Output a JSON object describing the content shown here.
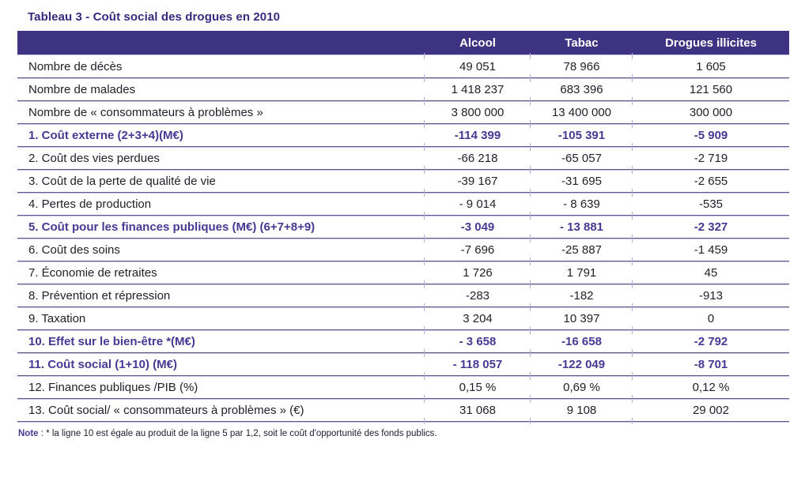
{
  "title": "Tableau 3 - Coût social des drogues en 2010",
  "table": {
    "columns": [
      "",
      "Alcool",
      "Tabac",
      "Drogues illicites"
    ],
    "rows": [
      {
        "label": "Nombre de décès",
        "values": [
          "49 051",
          "78 966",
          "1 605"
        ],
        "emphasis": false
      },
      {
        "label": "Nombre de malades",
        "values": [
          "1 418 237",
          "683 396",
          "121 560"
        ],
        "emphasis": false
      },
      {
        "label": "Nombre de « consommateurs à problèmes »",
        "values": [
          "3 800 000",
          "13 400 000",
          "300 000"
        ],
        "emphasis": false
      },
      {
        "label": "1. Coût externe (2+3+4)(M€)",
        "values": [
          "-114 399",
          "-105 391",
          "-5 909"
        ],
        "emphasis": true
      },
      {
        "label": "2. Coût des vies perdues",
        "values": [
          "-66 218",
          "-65 057",
          "-2 719"
        ],
        "emphasis": false
      },
      {
        "label": "3. Coût de la perte de qualité de vie",
        "values": [
          "-39 167",
          "-31 695",
          "-2 655"
        ],
        "emphasis": false
      },
      {
        "label": "4. Pertes de production",
        "values": [
          "- 9 014",
          "- 8 639",
          "-535"
        ],
        "emphasis": false
      },
      {
        "label": "5. Coût pour les finances publiques (M€) (6+7+8+9)",
        "values": [
          "-3 049",
          "- 13 881",
          "-2 327"
        ],
        "emphasis": true
      },
      {
        "label": "6. Coût des soins",
        "values": [
          "-7 696",
          "-25 887",
          "-1 459"
        ],
        "emphasis": false
      },
      {
        "label": "7. Économie de retraites",
        "values": [
          "1 726",
          "1 791",
          "45"
        ],
        "emphasis": false
      },
      {
        "label": "8. Prévention et répression",
        "values": [
          "-283",
          "-182",
          "-913"
        ],
        "emphasis": false
      },
      {
        "label": "9. Taxation",
        "values": [
          "3 204",
          "10 397",
          "0"
        ],
        "emphasis": false
      },
      {
        "label": "10. Effet sur le bien-être *(M€)",
        "values": [
          "- 3 658",
          "-16 658",
          "-2 792"
        ],
        "emphasis": true
      },
      {
        "label": "11. Coût social (1+10) (M€)",
        "values": [
          "- 118 057",
          "-122 049",
          "-8 701"
        ],
        "emphasis": true
      },
      {
        "label": "12. Finances publiques /PIB (%)",
        "values": [
          "0,15 %",
          "0,69 %",
          "0,12 %"
        ],
        "emphasis": false
      },
      {
        "label": "13. Coût social/ « consommateurs à problèmes » (€)",
        "values": [
          "31 068",
          "9 108",
          "29 002"
        ],
        "emphasis": false
      }
    ]
  },
  "note": {
    "label": "Note",
    "separator": " : ",
    "text": "* la ligne 10 est égale au produit de la ligne 5 par 1,2, soit le coût d'opportunité des fonds publics."
  },
  "colors": {
    "header_bg": "#3e3383",
    "accent": "#443a94",
    "title": "#342b7f",
    "body_text": "#21212b",
    "rule_dark": "#5e5987",
    "rule_light": "#c9c3e3"
  }
}
